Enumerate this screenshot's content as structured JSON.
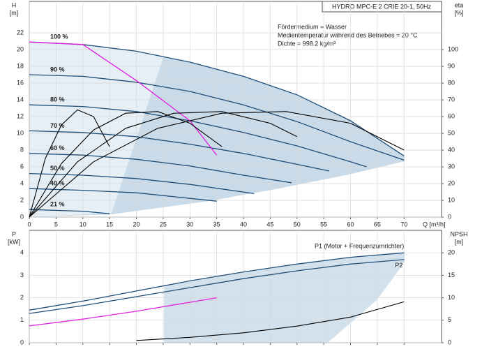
{
  "chart_data": [
    {
      "type": "line",
      "title": "HYDRO MPC-E 2 CRIE 20-1, 50Hz",
      "annotations": [
        "Fördermedium = Wasser",
        "Medientemperatur während des Betriebes = 20 °C",
        "Dichte = 998.2 kg/m³"
      ],
      "ylabel": "H",
      "yunit": "[m]",
      "y2label": "eta",
      "y2unit": "[%]",
      "xlabel": "Q [m³/h]",
      "xlim": [
        0,
        77
      ],
      "xticks": [
        0,
        5,
        10,
        15,
        20,
        25,
        30,
        35,
        40,
        45,
        50,
        55,
        60,
        65,
        70
      ],
      "ylim": [
        0,
        25.75
      ],
      "yticks": [
        0,
        2,
        4,
        6,
        8,
        10,
        12,
        14,
        16,
        18,
        20,
        22
      ],
      "y2lim": [
        0,
        128.75
      ],
      "y2ticks": [
        0,
        10,
        20,
        30,
        40,
        50,
        60,
        70,
        80,
        90,
        100
      ],
      "grid": true,
      "series": [
        {
          "name": "100 %",
          "color": "#1f4e79",
          "x": [
            0,
            10,
            20,
            30,
            40,
            50,
            60,
            70
          ],
          "values": [
            20.9,
            20.6,
            19.8,
            18.5,
            16.8,
            14.6,
            11.5,
            7.3
          ]
        },
        {
          "name": "90 %",
          "color": "#1f4e79",
          "x": [
            0,
            10,
            20,
            30,
            40,
            50,
            60,
            70
          ],
          "values": [
            17,
            16.8,
            16.1,
            15,
            13.4,
            11.4,
            9,
            6.8
          ]
        },
        {
          "name": "80 %",
          "color": "#1f4e79",
          "x": [
            0,
            10,
            20,
            30,
            40,
            50,
            60,
            63
          ],
          "values": [
            13.4,
            13.2,
            12.6,
            11.5,
            10.1,
            8.5,
            6.6,
            6
          ]
        },
        {
          "name": "70 %",
          "color": "#1f4e79",
          "x": [
            0,
            10,
            20,
            30,
            40,
            50,
            56
          ],
          "values": [
            10.3,
            10.1,
            9.6,
            8.7,
            7.6,
            6.3,
            5.5
          ]
        },
        {
          "name": "60 %",
          "color": "#1f4e79",
          "x": [
            0,
            10,
            20,
            30,
            40,
            49
          ],
          "values": [
            7.6,
            7.4,
            6.9,
            6.1,
            5,
            4.1
          ]
        },
        {
          "name": "50 %",
          "color": "#1f4e79",
          "x": [
            0,
            10,
            20,
            30,
            42
          ],
          "values": [
            5.2,
            5,
            4.6,
            3.9,
            2.8
          ]
        },
        {
          "name": "40 %",
          "color": "#1f4e79",
          "x": [
            0,
            10,
            20,
            35
          ],
          "values": [
            3.4,
            3.2,
            2.9,
            1.9
          ]
        },
        {
          "name": "21 %",
          "color": "#1f4e79",
          "x": [
            0,
            10,
            15
          ],
          "values": [
            0.9,
            0.7,
            0.4
          ]
        },
        {
          "color": "#e020e0",
          "x": [
            0,
            10,
            20,
            30,
            35
          ],
          "values": [
            20.9,
            20.6,
            16.3,
            11.5,
            7.4
          ]
        },
        {
          "color": "#000000",
          "axis": "y2",
          "x": [
            0,
            3,
            6,
            9,
            12,
            15
          ],
          "values": [
            0,
            35,
            55,
            64,
            60,
            42
          ]
        },
        {
          "color": "#000000",
          "axis": "y2",
          "x": [
            0,
            6,
            12,
            18,
            24,
            30,
            36
          ],
          "values": [
            0,
            32,
            52,
            62,
            63,
            56,
            42
          ]
        },
        {
          "color": "#000000",
          "axis": "y2",
          "x": [
            0,
            9,
            18,
            27,
            36,
            45,
            50
          ],
          "values": [
            0,
            33,
            53,
            62,
            63,
            56,
            48
          ]
        },
        {
          "color": "#000000",
          "axis": "y2",
          "x": [
            0,
            12,
            24,
            36,
            48,
            60,
            70
          ],
          "values": [
            0,
            33,
            53,
            62,
            63,
            56,
            40
          ]
        }
      ]
    },
    {
      "type": "line",
      "ylabel": "P",
      "yunit": "[kW]",
      "y2label": "NPSH",
      "y2unit": "[m]",
      "xlim": [
        0,
        77
      ],
      "xticks": [
        0,
        5,
        10,
        15,
        20,
        25,
        30,
        35,
        40,
        45,
        50,
        55,
        60,
        65,
        70
      ],
      "ylim": [
        0,
        5
      ],
      "yticks": [
        0,
        1,
        2,
        3,
        4
      ],
      "y2lim": [
        0,
        25
      ],
      "y2ticks": [
        0,
        5,
        10,
        15,
        20
      ],
      "grid": true,
      "series": [
        {
          "name": "P1 (Motor + Frequenzumrichter)",
          "color": "#1f4e79",
          "x": [
            0,
            10,
            20,
            30,
            40,
            50,
            60,
            70
          ],
          "values": [
            1.45,
            1.85,
            2.3,
            2.75,
            3.15,
            3.5,
            3.8,
            4.0
          ]
        },
        {
          "name": "P2",
          "color": "#1f4e79",
          "x": [
            0,
            10,
            20,
            30,
            40,
            50,
            60,
            70
          ],
          "values": [
            1.3,
            1.65,
            2.05,
            2.45,
            2.85,
            3.2,
            3.5,
            3.7
          ]
        },
        {
          "color": "#e020e0",
          "x": [
            0,
            10,
            20,
            30,
            35
          ],
          "values": [
            0.75,
            1.05,
            1.4,
            1.8,
            2.0
          ]
        },
        {
          "color": "#000000",
          "axis": "y2",
          "x": [
            20,
            30,
            40,
            50,
            60,
            70
          ],
          "values": [
            0.5,
            1.2,
            2.2,
            3.7,
            5.7,
            9.1
          ]
        }
      ]
    }
  ]
}
